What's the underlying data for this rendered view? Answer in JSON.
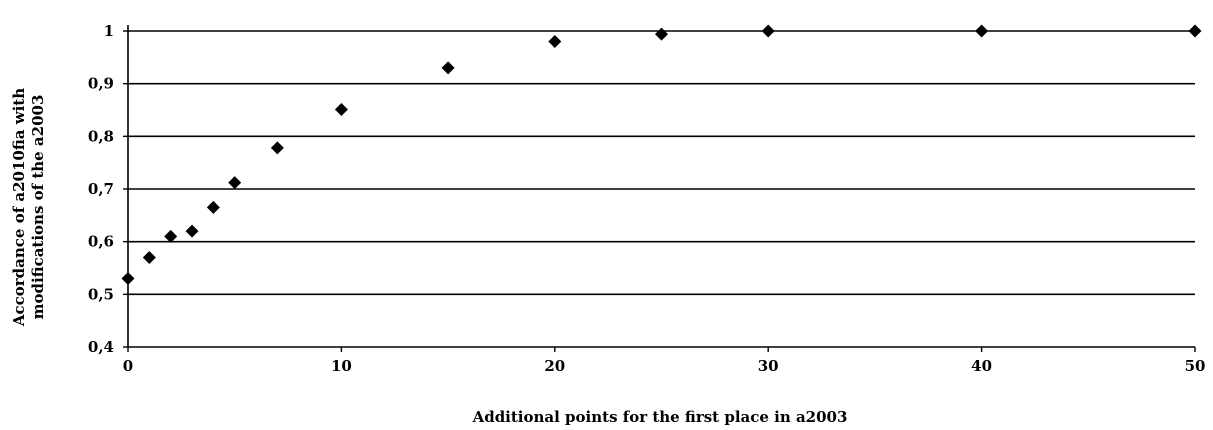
{
  "chart_data": {
    "type": "scatter",
    "title": "",
    "xlabel": "Additional points for the first place in a2003",
    "ylabel_lines": [
      "Accordance of a2010fia with",
      "modifications of the a2003"
    ],
    "xlim": [
      0,
      50
    ],
    "ylim": [
      0.4,
      1.0
    ],
    "x_ticks": [
      0,
      10,
      20,
      30,
      40,
      50
    ],
    "x_tick_labels": [
      "0",
      "10",
      "20",
      "30",
      "40",
      "50"
    ],
    "y_ticks": [
      0.4,
      0.5,
      0.6,
      0.7,
      0.8,
      0.9,
      1.0
    ],
    "y_tick_labels": [
      "0,4",
      "0,5",
      "0,6",
      "0,7",
      "0,8",
      "0,9",
      "1"
    ],
    "grid": "horizontal",
    "legend": "none",
    "marker": "diamond",
    "marker_color": "#000000",
    "x": [
      0,
      1,
      2,
      3,
      4,
      5,
      7,
      10,
      15,
      20,
      25,
      30,
      40,
      50
    ],
    "y": [
      0.53,
      0.57,
      0.61,
      0.62,
      0.665,
      0.712,
      0.778,
      0.851,
      0.93,
      0.98,
      0.994,
      1.0,
      1.0,
      1.0
    ]
  }
}
